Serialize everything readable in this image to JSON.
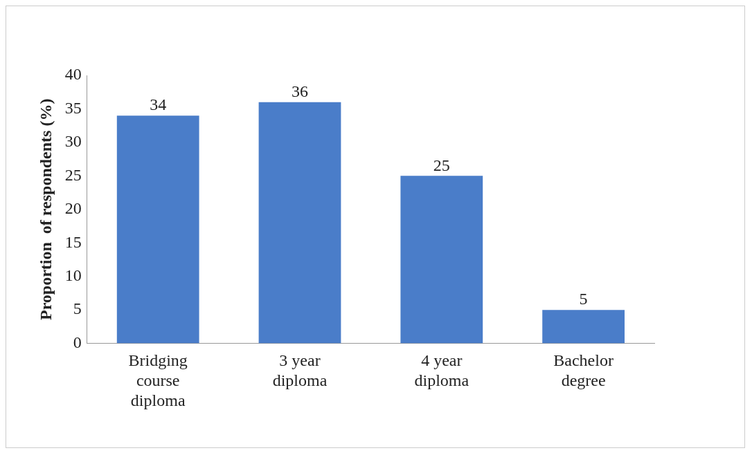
{
  "chart_data": {
    "type": "bar",
    "ylabel": "Proportion  of respondents (%)",
    "categories": [
      "Bridging course diploma",
      "3 year diploma",
      "4 year diploma",
      "Bachelor degree"
    ],
    "values": [
      34,
      36,
      25,
      5
    ],
    "color": "#4a7dc9",
    "ylim": [
      0,
      40
    ],
    "yticks": [
      0,
      5,
      10,
      15,
      20,
      25,
      30,
      35,
      40
    ],
    "grid": false,
    "legend": false,
    "data_labels": true
  }
}
